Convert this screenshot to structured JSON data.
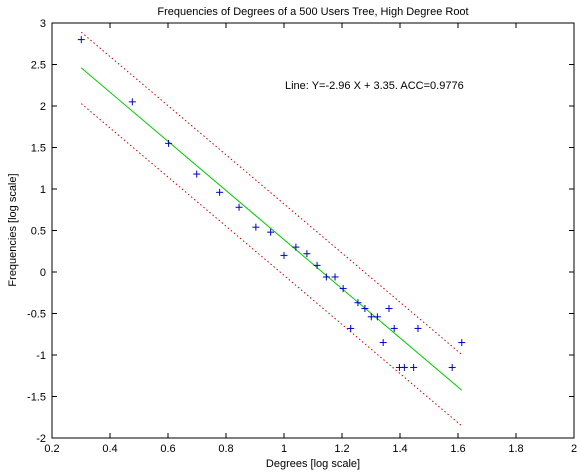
{
  "chart_data": {
    "type": "scatter",
    "title": "Frequencies of Degrees of a 500 Users Tree, High Degree Root",
    "xlabel": "Degrees [log scale]",
    "ylabel": "Frequencies [log scale]",
    "xlim": [
      0.2,
      2
    ],
    "ylim": [
      -2,
      3
    ],
    "xticks": [
      "0.2",
      "0.4",
      "0.6",
      "0.8",
      "1",
      "1.2",
      "1.4",
      "1.6",
      "1.8",
      "2"
    ],
    "yticks": [
      "3",
      "2.5",
      "2",
      "1.5",
      "1",
      "0.5",
      "0",
      "-0.5",
      "-1",
      "-1.5",
      "-2"
    ],
    "grid": false,
    "annotation": "Line: Y=-2.96 X + 3.35.  ACC=0.9776",
    "marker_color": "#0000cc",
    "fit_line_color": "#00cc00",
    "bound_line_color": "#cc0000",
    "points": {
      "x": [
        0.301,
        0.477,
        0.602,
        0.699,
        0.778,
        0.845,
        0.903,
        0.954,
        1.0,
        1.041,
        1.079,
        1.114,
        1.146,
        1.176,
        1.204,
        1.23,
        1.255,
        1.279,
        1.301,
        1.322,
        1.342,
        1.362,
        1.38,
        1.398,
        1.415,
        1.447,
        1.462,
        1.58,
        1.613
      ],
      "y": [
        2.8,
        2.05,
        1.55,
        1.18,
        0.96,
        0.78,
        0.54,
        0.48,
        0.2,
        0.3,
        0.22,
        0.08,
        -0.06,
        -0.06,
        -0.2,
        -0.68,
        -0.37,
        -0.44,
        -0.54,
        -0.54,
        -0.85,
        -0.44,
        -0.68,
        -1.15,
        -1.15,
        -1.15,
        -0.68,
        -1.15,
        -0.85
      ]
    },
    "fit_line": {
      "slope": -2.96,
      "intercept": 3.35,
      "x_range": [
        0.301,
        1.613
      ]
    },
    "bound_offset": 0.43
  }
}
